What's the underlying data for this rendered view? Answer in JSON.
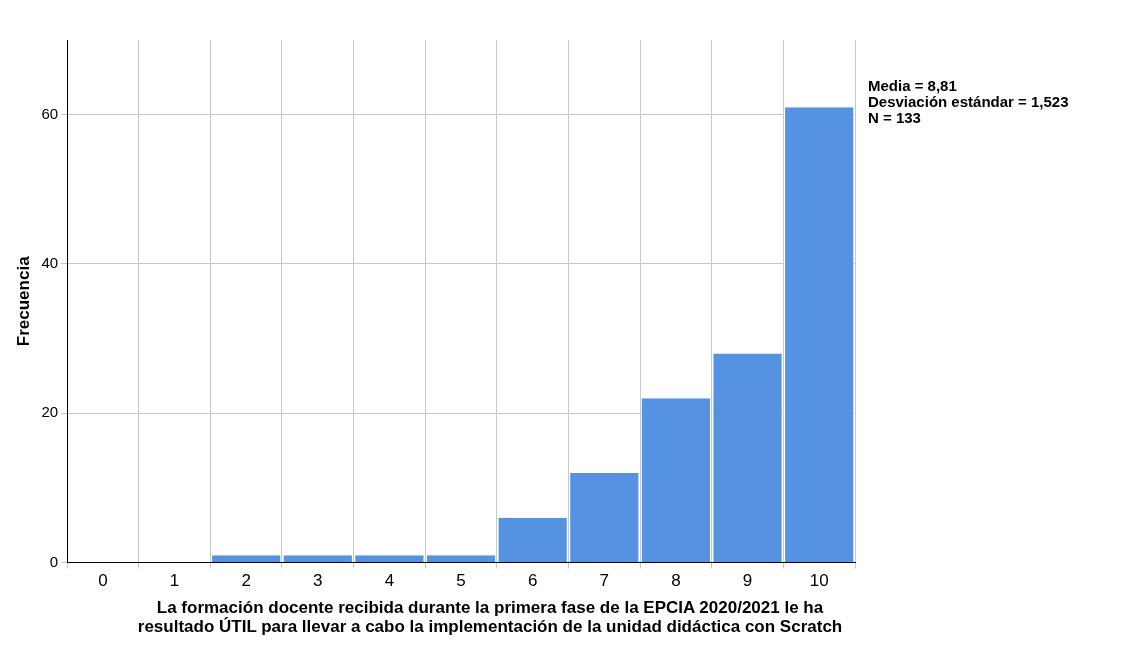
{
  "chart_data": {
    "type": "histogram",
    "xlabel": "La formación docente recibida durante la primera fase de la EPCIA 2020/2021 le ha resultado ÚTIL para llevar a cabo la implementación de la unidad didáctica con Scratch",
    "ylabel": "Frecuencia",
    "bins": [
      -0.5,
      0.5,
      1.5,
      2.5,
      3.5,
      4.5,
      5.5,
      6.5,
      7.5,
      8.5,
      9.5,
      10.5
    ],
    "values": [
      0,
      0,
      1,
      1,
      1,
      1,
      6,
      12,
      22,
      28,
      61
    ],
    "color": "#5593e2",
    "xlim": [
      -0.5,
      10.5
    ],
    "xticks": [
      0,
      1,
      2,
      3,
      4,
      5,
      6,
      7,
      8,
      9,
      10
    ],
    "ylim": [
      0,
      70
    ],
    "yticks": [
      0,
      20,
      40,
      60
    ],
    "grid": true,
    "annotations": [
      "Media = 8,81",
      "Desviación estándar = 1,523",
      "N = 133"
    ]
  }
}
